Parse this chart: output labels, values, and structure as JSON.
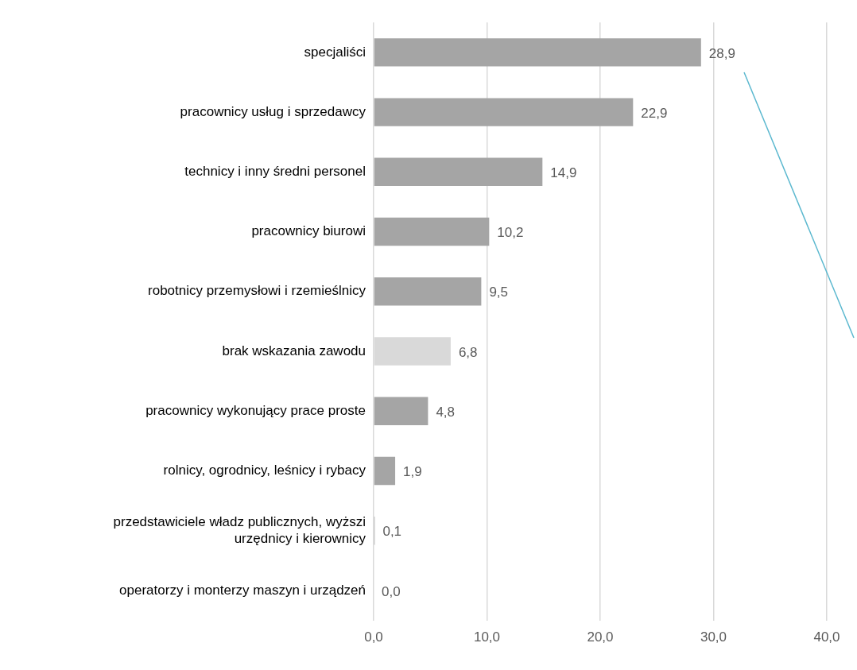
{
  "chart_data": {
    "type": "bar",
    "orientation": "horizontal",
    "categories": [
      "specjaliści",
      "pracownicy usług i sprzedawcy",
      "technicy i inny średni personel",
      "pracownicy biurowi",
      "robotnicy przemysłowi i rzemieślnicy",
      "brak wskazania zawodu",
      "pracownicy wykonujący prace proste",
      "rolnicy, ogrodnicy, leśnicy i rybacy",
      "przedstawiciele władz publicznych, wyższi urzędnicy i kierownicy",
      "operatorzy i monterzy maszyn i urządzeń"
    ],
    "values": [
      28.9,
      22.9,
      14.9,
      10.2,
      9.5,
      6.8,
      4.8,
      1.9,
      0.1,
      0.0
    ],
    "value_labels": [
      "28,9",
      "22,9",
      "14,9",
      "10,2",
      "9,5",
      "6,8",
      "4,8",
      "1,9",
      "0,1",
      "0,0"
    ],
    "colors": [
      "#a5a5a5",
      "#a5a5a5",
      "#a5a5a5",
      "#a5a5a5",
      "#a5a5a5",
      "#d9d9d9",
      "#a5a5a5",
      "#a5a5a5",
      "#a5a5a5",
      "#a5a5a5"
    ],
    "xlim": [
      0,
      40
    ],
    "xticks": [
      {
        "value": 0,
        "label": "0,0"
      },
      {
        "value": 10,
        "label": "10,0"
      },
      {
        "value": 20,
        "label": "20,0"
      },
      {
        "value": 30,
        "label": "30,0"
      },
      {
        "value": 40,
        "label": "40,0"
      }
    ],
    "grid": "x",
    "legend": false
  }
}
